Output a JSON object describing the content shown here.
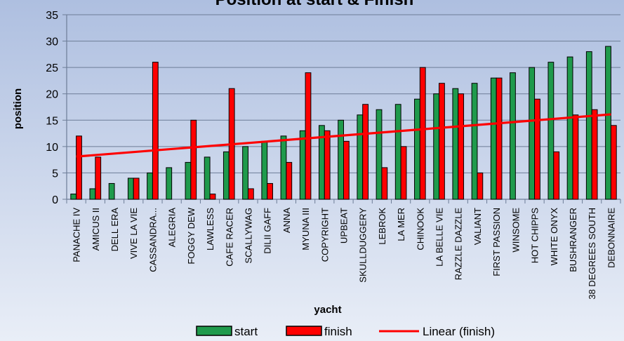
{
  "chart_data": {
    "type": "bar",
    "title": "Position at start & Finish",
    "xlabel": "yacht",
    "ylabel": "position",
    "ylim": [
      0,
      35
    ],
    "yticks": [
      0,
      5,
      10,
      15,
      20,
      25,
      30,
      35
    ],
    "grid": true,
    "legend_position": "bottom",
    "categories": [
      "PANACHE IV",
      "AMICUS II",
      "DELL ERA",
      "VIVE LA VIE",
      "CASSANDRA...",
      "ALEGRIA",
      "FOGGY DEW",
      "LAWLESS",
      "CAFE RACER",
      "SCALLYWAG",
      "DILII GAFF",
      "ANNA",
      "MYUNA III",
      "COPYRIGHT",
      "UPBEAT",
      "SKULLDUGGERY",
      "LEBROK",
      "LA MER",
      "CHINOOK",
      "LA BELLE VIE",
      "RAZZLE DAZZLE",
      "VALIANT",
      "FIRST PASSION",
      "WINSOME",
      "HOT CHIPPS",
      "WHITE ONYX",
      "BUSHRANGER",
      "38 DEGREES SOUTH",
      "DEBONNAIRE"
    ],
    "series": [
      {
        "name": "start",
        "color": "#1f9a4c",
        "values": [
          1,
          2,
          3,
          4,
          5,
          6,
          7,
          8,
          9,
          10,
          11,
          12,
          13,
          14,
          15,
          16,
          17,
          18,
          19,
          20,
          21,
          22,
          23,
          24,
          25,
          26,
          27,
          28,
          29
        ]
      },
      {
        "name": "finish",
        "color": "#ff0000",
        "values": [
          12,
          8,
          null,
          4,
          26,
          null,
          15,
          1,
          21,
          2,
          3,
          7,
          24,
          13,
          11,
          18,
          6,
          10,
          25,
          22,
          20,
          5,
          23,
          null,
          19,
          9,
          16,
          17,
          14
        ]
      }
    ],
    "trendline": {
      "name": "Linear (finish)",
      "color": "#ff0000",
      "start_value": 8.1,
      "end_value": 16.1
    }
  },
  "colors": {
    "background_top": "#aebfe0",
    "background_bottom": "#e9eef7",
    "start": "#1f9a4c",
    "finish": "#ff0000"
  }
}
